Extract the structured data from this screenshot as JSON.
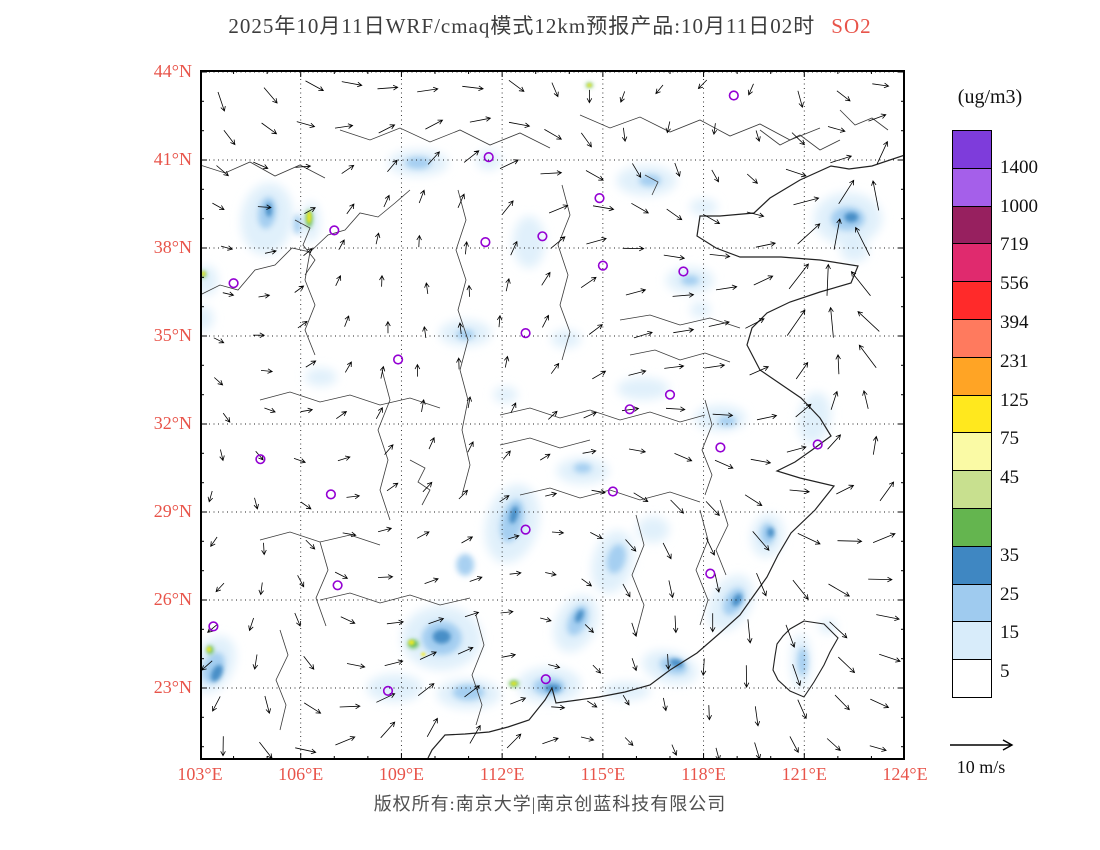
{
  "title": {
    "prefix": "2025年10月11日WRF/cmaq模式12km预报产品:10月11日02时",
    "pollutant": "SO2"
  },
  "footer": {
    "copyright": "版权所有:南京大学|南京创蓝科技有限公司"
  },
  "wind_scale": {
    "label": "10 m/s"
  },
  "legend": {
    "units": "(ug/m3)",
    "segments": [
      {
        "color": "#7E3CDB",
        "boundary_label": "1400"
      },
      {
        "color": "#A55FEA",
        "boundary_label": "1000"
      },
      {
        "color": "#97205F",
        "boundary_label": "719"
      },
      {
        "color": "#E02A6E",
        "boundary_label": "556"
      },
      {
        "color": "#FF2A2A",
        "boundary_label": "394"
      },
      {
        "color": "#FF7A5E",
        "boundary_label": "231"
      },
      {
        "color": "#FFA425",
        "boundary_label": "125"
      },
      {
        "color": "#FFE81E",
        "boundary_label": "75"
      },
      {
        "color": "#FAFAA5",
        "boundary_label": "45"
      },
      {
        "color": "#C8E08F",
        "boundary_label": ""
      },
      {
        "color": "#64B54F",
        "boundary_label": "35"
      },
      {
        "color": "#3F87C2",
        "boundary_label": "25"
      },
      {
        "color": "#9FCBEF",
        "boundary_label": "15"
      },
      {
        "color": "#D8ECFA",
        "boundary_label": "5"
      },
      {
        "color": "#FFFFFF",
        "boundary_label": ""
      }
    ]
  },
  "axes": {
    "lat": [
      "44°N",
      "41°N",
      "38°N",
      "35°N",
      "32°N",
      "29°N",
      "26°N",
      "23°N"
    ],
    "lon": [
      "103°E",
      "106°E",
      "109°E",
      "112°E",
      "115°E",
      "118°E",
      "121°E",
      "124°E"
    ]
  },
  "colors": {
    "axis_label": "#e8544a",
    "title": "#3d3d3d",
    "pollutant": "#e8544a",
    "marker": "#9400D3"
  },
  "chart_data": {
    "type": "heatmap",
    "title": "2025年10月11日WRF/cmaq模式12km预报产品:10月11日02时 SO2",
    "variable": "SO2",
    "units": "ug/m3",
    "x": {
      "label": "longitude",
      "range": [
        103,
        124
      ],
      "ticks": [
        103,
        106,
        109,
        112,
        115,
        118,
        121,
        124
      ]
    },
    "y": {
      "label": "latitude",
      "range": [
        23,
        44
      ],
      "ticks": [
        23,
        26,
        29,
        32,
        35,
        38,
        41,
        44
      ]
    },
    "levels": [
      5,
      15,
      25,
      35,
      45,
      75,
      125,
      231,
      394,
      556,
      719,
      1000,
      1400
    ],
    "wind_scale": "10 m/s",
    "patch_colors": {
      "pale": "#D8ECFA",
      "light": "#9FCBEF",
      "steel": "#3F87C2",
      "green": "#5CB84E",
      "yellow": "#F2EA1E"
    },
    "so2_patches": [
      [
        105.0,
        39.0,
        26,
        36,
        8,
        "pale"
      ],
      [
        109.5,
        40.9,
        30,
        13,
        0,
        "pale"
      ],
      [
        111.6,
        41.0,
        12,
        10,
        0,
        "pale"
      ],
      [
        116.3,
        40.3,
        30,
        15,
        0,
        "pale"
      ],
      [
        112.8,
        38.2,
        16,
        26,
        0,
        "pale"
      ],
      [
        110.9,
        35.1,
        26,
        13,
        0,
        "pale"
      ],
      [
        113.9,
        34.9,
        15,
        9,
        0,
        "pale"
      ],
      [
        117.6,
        36.9,
        24,
        13,
        0,
        "pale"
      ],
      [
        116.2,
        33.2,
        26,
        11,
        0,
        "pale"
      ],
      [
        118.5,
        32.2,
        26,
        13,
        0,
        "pale"
      ],
      [
        121.3,
        32.2,
        16,
        26,
        10,
        "pale"
      ],
      [
        114.4,
        30.4,
        26,
        13,
        0,
        "pale"
      ],
      [
        112.3,
        28.6,
        26,
        40,
        15,
        "pale"
      ],
      [
        110.2,
        24.7,
        40,
        32,
        0,
        "pale"
      ],
      [
        108.8,
        23.0,
        28,
        14,
        0,
        "pale"
      ],
      [
        111.0,
        22.8,
        32,
        15,
        0,
        "pale"
      ],
      [
        113.4,
        23.1,
        32,
        18,
        0,
        "pale"
      ],
      [
        114.2,
        25.2,
        20,
        30,
        25,
        "pale"
      ],
      [
        115.3,
        27.3,
        20,
        32,
        15,
        "pale"
      ],
      [
        116.5,
        28.4,
        16,
        13,
        0,
        "pale"
      ],
      [
        119.9,
        28.2,
        16,
        22,
        10,
        "pale"
      ],
      [
        118.8,
        25.9,
        20,
        30,
        30,
        "pale"
      ],
      [
        117.0,
        23.7,
        28,
        16,
        15,
        "pale"
      ],
      [
        122.3,
        39.0,
        34,
        26,
        0,
        "pale"
      ],
      [
        122.5,
        37.9,
        14,
        11,
        0,
        "pale"
      ],
      [
        103.4,
        23.8,
        20,
        30,
        25,
        "pale"
      ],
      [
        103.2,
        36.9,
        11,
        15,
        0,
        "pale"
      ],
      [
        103.1,
        35.6,
        10,
        12,
        0,
        "pale"
      ],
      [
        120.9,
        23.9,
        10,
        28,
        0,
        "pale"
      ],
      [
        121.7,
        25.1,
        9,
        7,
        0,
        "pale"
      ],
      [
        106.6,
        33.6,
        16,
        9,
        0,
        "pale"
      ],
      [
        115.7,
        22.9,
        24,
        9,
        0,
        "pale"
      ],
      [
        106.3,
        38.9,
        9,
        20,
        0,
        "pale"
      ],
      [
        117.9,
        35.9,
        10,
        8,
        0,
        "pale"
      ],
      [
        112.1,
        33.0,
        12,
        8,
        0,
        "pale"
      ],
      [
        118.0,
        39.4,
        14,
        8,
        0,
        "pale"
      ],
      [
        105.0,
        39.2,
        9,
        16,
        8,
        "light"
      ],
      [
        109.5,
        40.9,
        13,
        6,
        0,
        "light"
      ],
      [
        116.4,
        40.3,
        11,
        6,
        0,
        "light"
      ],
      [
        112.3,
        28.7,
        11,
        22,
        15,
        "light"
      ],
      [
        110.9,
        27.2,
        9,
        11,
        0,
        "light"
      ],
      [
        110.2,
        24.7,
        20,
        17,
        0,
        "light"
      ],
      [
        111.0,
        22.85,
        16,
        8,
        0,
        "light"
      ],
      [
        113.4,
        23.05,
        16,
        9,
        0,
        "light"
      ],
      [
        114.25,
        25.3,
        9,
        16,
        25,
        "light"
      ],
      [
        115.4,
        27.4,
        9,
        15,
        15,
        "light"
      ],
      [
        119.9,
        28.25,
        7,
        11,
        0,
        "light"
      ],
      [
        118.9,
        25.95,
        9,
        15,
        30,
        "light"
      ],
      [
        117.1,
        23.75,
        14,
        8,
        15,
        "light"
      ],
      [
        122.3,
        39.0,
        17,
        12,
        0,
        "light"
      ],
      [
        103.4,
        23.7,
        10,
        16,
        25,
        "light"
      ],
      [
        120.95,
        23.9,
        5,
        14,
        0,
        "light"
      ],
      [
        117.6,
        36.9,
        9,
        5,
        0,
        "light"
      ],
      [
        118.7,
        32.1,
        9,
        5,
        0,
        "light"
      ],
      [
        114.4,
        30.5,
        9,
        5,
        0,
        "light"
      ],
      [
        110.9,
        35.05,
        9,
        5,
        0,
        "light"
      ],
      [
        105.9,
        38.8,
        4,
        10,
        0,
        "light"
      ],
      [
        110.2,
        24.75,
        9,
        7,
        0,
        "steel"
      ],
      [
        113.5,
        23.0,
        8,
        4,
        0,
        "steel"
      ],
      [
        117.2,
        23.85,
        7,
        4,
        15,
        "steel"
      ],
      [
        119.0,
        26.0,
        4,
        7,
        30,
        "steel"
      ],
      [
        120.0,
        28.3,
        3.5,
        5,
        0,
        "steel"
      ],
      [
        103.5,
        23.5,
        5,
        9,
        25,
        "steel"
      ],
      [
        122.4,
        39.05,
        7,
        5,
        0,
        "steel"
      ],
      [
        112.35,
        28.9,
        4,
        9,
        15,
        "steel"
      ],
      [
        114.3,
        25.45,
        3.5,
        7,
        25,
        "steel"
      ],
      [
        105.05,
        39.3,
        3,
        7,
        0,
        "steel"
      ],
      [
        106.25,
        39.0,
        3.5,
        9,
        0,
        "green"
      ],
      [
        103.1,
        37.1,
        2.8,
        3.5,
        0,
        "green"
      ],
      [
        109.35,
        24.5,
        5.5,
        4.5,
        0,
        "green"
      ],
      [
        112.35,
        23.15,
        5,
        3.5,
        0,
        "green"
      ],
      [
        103.3,
        24.3,
        3.5,
        4.5,
        0,
        "green"
      ],
      [
        114.6,
        43.55,
        3.5,
        2.6,
        0,
        "green"
      ],
      [
        106.25,
        39.05,
        2.2,
        6,
        0,
        "yellow"
      ],
      [
        103.1,
        37.12,
        1.8,
        2.2,
        0,
        "yellow"
      ],
      [
        109.3,
        24.55,
        3,
        2.6,
        0,
        "yellow"
      ],
      [
        109.65,
        24.15,
        2.2,
        1.8,
        0,
        "yellow"
      ],
      [
        112.35,
        23.15,
        3,
        1.8,
        0,
        "yellow"
      ],
      [
        103.27,
        24.32,
        2.2,
        2.6,
        0,
        "yellow"
      ],
      [
        114.6,
        43.55,
        2.2,
        1.6,
        0,
        "yellow"
      ]
    ],
    "city_markers": [
      [
        118.9,
        43.2
      ],
      [
        111.6,
        41.1
      ],
      [
        114.9,
        39.7
      ],
      [
        107.0,
        38.6
      ],
      [
        113.2,
        38.4
      ],
      [
        111.5,
        38.2
      ],
      [
        115.0,
        37.4
      ],
      [
        117.4,
        37.2
      ],
      [
        104.0,
        36.8
      ],
      [
        112.7,
        35.1
      ],
      [
        108.9,
        34.2
      ],
      [
        117.0,
        33.0
      ],
      [
        115.8,
        32.5
      ],
      [
        118.5,
        31.2
      ],
      [
        121.4,
        31.3
      ],
      [
        104.8,
        30.8
      ],
      [
        106.9,
        29.6
      ],
      [
        115.3,
        29.7
      ],
      [
        112.7,
        28.4
      ],
      [
        118.2,
        26.9
      ],
      [
        107.1,
        26.5
      ],
      [
        103.4,
        25.1
      ],
      [
        113.3,
        23.3
      ],
      [
        108.6,
        22.9
      ]
    ]
  }
}
